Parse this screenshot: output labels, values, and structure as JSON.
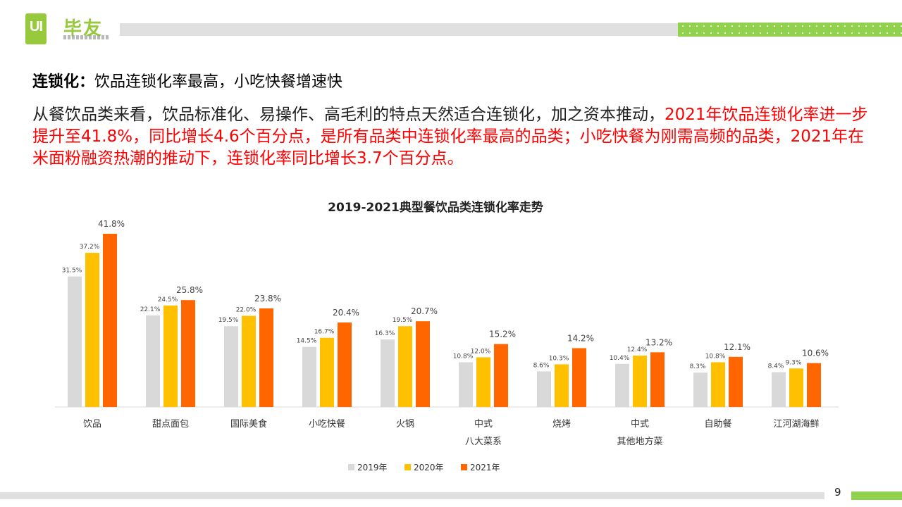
{
  "brand": {
    "logo_mark": "UI",
    "name": "毕友",
    "colors": {
      "green": "#97c93d",
      "bar_green": "#92d050",
      "bar_grey": "#e0e0e0"
    }
  },
  "heading": {
    "bold": "连锁化：",
    "rest": "饮品连锁化率最高，小吃快餐增速快"
  },
  "paragraph": {
    "normal": "从餐饮品类来看，饮品标准化、易操作、高毛利的特点天然适合连锁化，加之资本推动，",
    "highlight": "2021年饮品连锁化率进一步提升至41.8%，同比增长4.6个百分点，是所有品类中连锁化率最高的品类；小吃快餐为刚需高频的品类，2021年在米面粉融资热潮的推动下，连锁化率同比增长3.7个百分点。",
    "highlight_color": "#ff0000"
  },
  "page_number": "9",
  "chart_data": {
    "type": "bar",
    "title": "2019-2021典型餐饮品类连锁化率走势",
    "xlabel": "",
    "ylabel": "",
    "ylim": [
      0,
      45
    ],
    "grid": false,
    "legend_position": "bottom",
    "categories": [
      [
        "饮品"
      ],
      [
        "甜点面包"
      ],
      [
        "国际美食"
      ],
      [
        "小吃快餐"
      ],
      [
        "火锅"
      ],
      [
        "中式",
        "八大菜系"
      ],
      [
        "烧烤"
      ],
      [
        "中式",
        "其他地方菜"
      ],
      [
        "自助餐"
      ],
      [
        "江河湖海鲜"
      ]
    ],
    "series": [
      {
        "name": "2019年",
        "color": "#d9d9d9",
        "values": [
          31.5,
          22.1,
          19.5,
          14.5,
          16.3,
          10.8,
          8.6,
          10.4,
          8.3,
          8.4
        ],
        "labels": [
          "31.5%",
          "22.1%",
          "19.5%",
          "14.5%",
          "16.3%",
          "10.8%",
          "8.6%",
          "10.4%",
          "8.3%",
          "8.4%"
        ]
      },
      {
        "name": "2020年",
        "color": "#ffc000",
        "values": [
          37.2,
          24.5,
          22.0,
          16.7,
          19.5,
          12.0,
          10.3,
          12.4,
          10.8,
          9.3
        ],
        "labels": [
          "37.2%",
          "24.5%",
          "22.0%",
          "16.7%",
          "19.5%",
          "12.0%",
          "10.3%",
          "12.4%",
          "10.8%",
          "9.3%"
        ]
      },
      {
        "name": "2021年",
        "color": "#ff6600",
        "values": [
          41.8,
          25.8,
          23.8,
          20.4,
          20.7,
          15.2,
          14.2,
          13.2,
          12.1,
          10.6
        ],
        "labels": [
          "41.8%",
          "25.8%",
          "23.8%",
          "20.4%",
          "20.7%",
          "15.2%",
          "14.2%",
          "13.2%",
          "12.1%",
          "10.6%"
        ]
      }
    ]
  }
}
